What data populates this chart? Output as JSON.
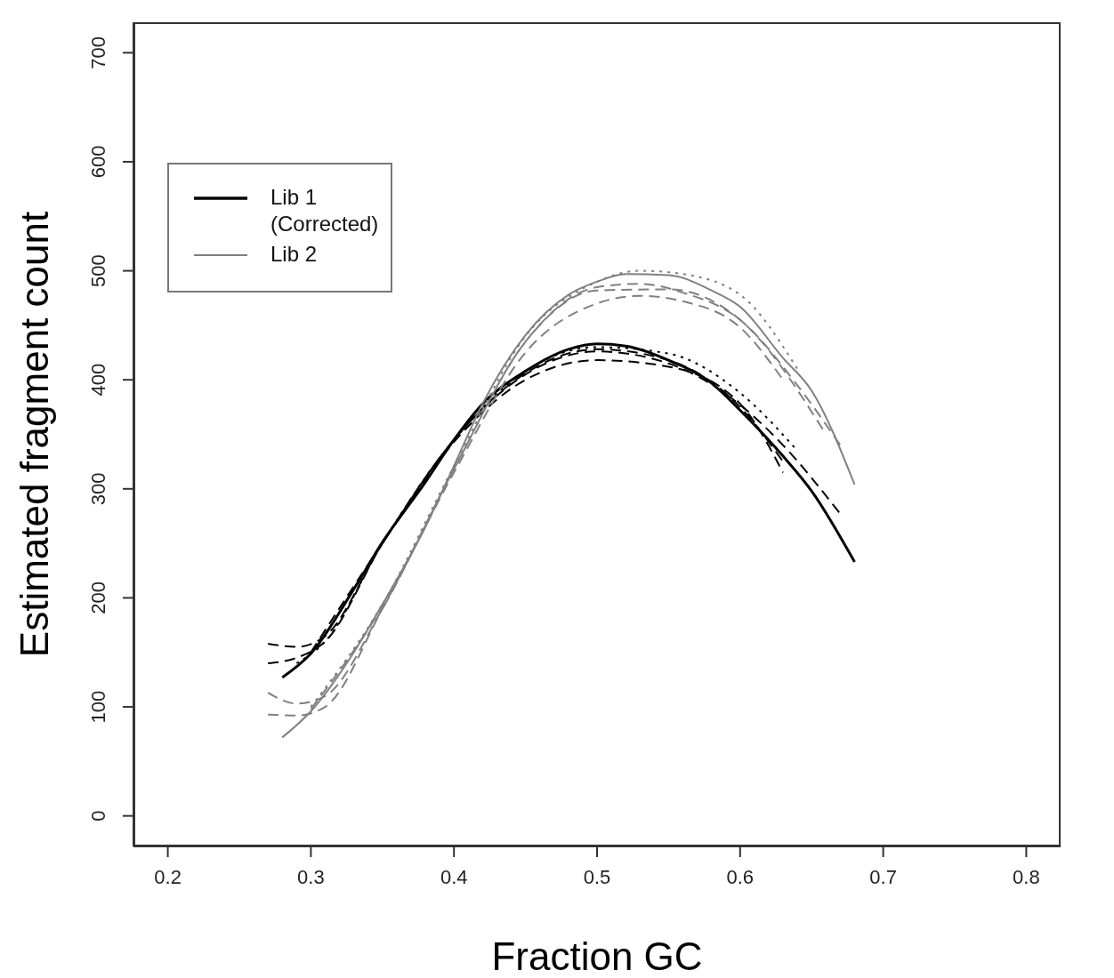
{
  "chart_data": {
    "type": "line",
    "xlabel": "Fraction GC",
    "ylabel": "Estimated fragment count",
    "xlim": [
      0.176,
      0.824
    ],
    "ylim": [
      -28,
      728
    ],
    "xticks": [
      0.2,
      0.3,
      0.4,
      0.5,
      0.6,
      0.7,
      0.8
    ],
    "yticks": [
      0,
      100,
      200,
      300,
      400,
      500,
      600,
      700
    ],
    "legend": "top left",
    "series": [
      {
        "name": "Lib 1\n(Corrected)",
        "color": "#000000",
        "line_style": "solid",
        "x": [
          0.28,
          0.3,
          0.33,
          0.35,
          0.38,
          0.4,
          0.42,
          0.45,
          0.48,
          0.5,
          0.52,
          0.55,
          0.58,
          0.6,
          0.63,
          0.65,
          0.68
        ],
        "values": [
          127,
          149,
          208,
          251,
          306,
          345,
          378,
          408,
          428,
          433,
          431,
          418,
          397,
          372,
          330,
          298,
          233
        ]
      },
      {
        "color": "#000000",
        "line_style": "dashed",
        "x": [
          0.27,
          0.29,
          0.31,
          0.35,
          0.4,
          0.45,
          0.5,
          0.55,
          0.6,
          0.63,
          0.67
        ],
        "values": [
          158,
          155,
          165,
          250,
          345,
          405,
          426,
          415,
          377,
          340,
          277
        ]
      },
      {
        "color": "#000000",
        "line_style": "dashed",
        "x": [
          0.27,
          0.29,
          0.31,
          0.35,
          0.4,
          0.45,
          0.5,
          0.55,
          0.6,
          0.63
        ],
        "values": [
          140,
          145,
          160,
          250,
          345,
          406,
          428,
          418,
          375,
          325
        ]
      },
      {
        "color": "#000000",
        "line_style": "dotted",
        "x": [
          0.29,
          0.31,
          0.35,
          0.4,
          0.45,
          0.5,
          0.55,
          0.6,
          0.64
        ],
        "values": [
          140,
          160,
          250,
          345,
          408,
          430,
          424,
          388,
          335
        ]
      },
      {
        "color": "#000000",
        "line_style": "dashed",
        "x": [
          0.3,
          0.35,
          0.4,
          0.45,
          0.5,
          0.55,
          0.6,
          0.63
        ],
        "values": [
          150,
          250,
          343,
          400,
          418,
          412,
          378,
          315
        ]
      },
      {
        "name": "Lib 2",
        "color": "#808080",
        "line_style": "solid",
        "x": [
          0.28,
          0.3,
          0.33,
          0.35,
          0.38,
          0.4,
          0.42,
          0.45,
          0.48,
          0.5,
          0.52,
          0.55,
          0.58,
          0.6,
          0.63,
          0.65,
          0.68
        ],
        "values": [
          72,
          96,
          150,
          194,
          265,
          321,
          378,
          441,
          478,
          490,
          497,
          496,
          482,
          467,
          420,
          390,
          304
        ]
      },
      {
        "color": "#808080",
        "line_style": "dotted",
        "x": [
          0.3,
          0.35,
          0.4,
          0.45,
          0.5,
          0.53,
          0.56,
          0.6,
          0.64
        ],
        "values": [
          100,
          194,
          321,
          440,
          490,
          500,
          497,
          478,
          410
        ]
      },
      {
        "color": "#808080",
        "line_style": "dashed",
        "x": [
          0.27,
          0.29,
          0.31,
          0.35,
          0.4,
          0.45,
          0.5,
          0.53,
          0.56,
          0.6,
          0.64,
          0.67
        ],
        "values": [
          113,
          103,
          110,
          190,
          318,
          435,
          485,
          488,
          480,
          455,
          395,
          340
        ]
      },
      {
        "color": "#808080",
        "line_style": "dashed",
        "x": [
          0.27,
          0.29,
          0.31,
          0.35,
          0.4,
          0.45,
          0.5,
          0.55,
          0.6,
          0.66
        ],
        "values": [
          93,
          92,
          100,
          190,
          318,
          435,
          482,
          483,
          455,
          350
        ]
      },
      {
        "color": "#808080",
        "line_style": "dashed",
        "x": [
          0.3,
          0.35,
          0.4,
          0.45,
          0.5,
          0.53,
          0.56,
          0.6,
          0.63
        ],
        "values": [
          98,
          192,
          315,
          425,
          470,
          477,
          472,
          448,
          400
        ]
      }
    ]
  }
}
